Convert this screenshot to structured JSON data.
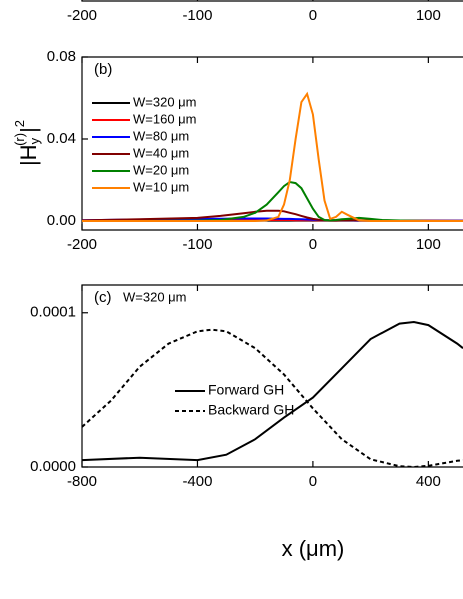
{
  "chart_data": [
    {
      "type": "line",
      "xlim": [
        -200,
        130
      ],
      "xticks": [
        -200,
        -100,
        0,
        100
      ]
    },
    {
      "type": "line",
      "panel_label": "(b)",
      "ylabel_parts": [
        "|H",
        "y",
        "(r)",
        "|",
        "2"
      ],
      "xlim": [
        -200,
        130
      ],
      "xticks": [
        -200,
        -100,
        0,
        100
      ],
      "ylim": [
        -0.0044,
        0.08
      ],
      "yticks": [
        {
          "value": 0,
          "label": "0.00"
        },
        0.04,
        0.08
      ],
      "x": [
        -200,
        -150,
        -100,
        -80,
        -60,
        -50,
        -40,
        -30,
        -25,
        -20,
        -15,
        -10,
        -5,
        0,
        5,
        10,
        15,
        20,
        25,
        30,
        40,
        50,
        60,
        80,
        100,
        130
      ],
      "series": [
        {
          "name": "W=320 μm",
          "color": "#000000",
          "values": [
            0.0001,
            0.0001,
            0.0002,
            0.0002,
            0.0002,
            0.0002,
            0.0002,
            0.0002,
            0.0002,
            0.0002,
            0.0002,
            0.0002,
            0.0002,
            0.0002,
            0.0002,
            0.0002,
            0.0002,
            0.0002,
            0.0002,
            0.0002,
            0.0002,
            0.0002,
            0.0002,
            0.0001,
            0.0001,
            0.0001
          ]
        },
        {
          "name": "W=160 μm",
          "color": "#ff0000",
          "values": [
            0.0002,
            0.0003,
            0.0004,
            0.0004,
            0.0005,
            0.0005,
            0.0005,
            0.0005,
            0.0005,
            0.0005,
            0.0004,
            0.0004,
            0.0004,
            0.0004,
            0.0003,
            0.0003,
            0.0003,
            0.0003,
            0.0003,
            0.0003,
            0.0002,
            0.0002,
            0.0002,
            0.0002,
            0.0001,
            0.0001
          ]
        },
        {
          "name": "W=80 μm",
          "color": "#0000ff",
          "values": [
            0.0004,
            0.0007,
            0.001,
            0.0011,
            0.0012,
            0.0012,
            0.0012,
            0.0011,
            0.001,
            0.001,
            0.0009,
            0.0008,
            0.0007,
            0.0006,
            0.0005,
            0.0004,
            0.0004,
            0.0003,
            0.0003,
            0.0003,
            0.0002,
            0.0002,
            0.0002,
            0.0001,
            0.0001,
            0.0001
          ]
        },
        {
          "name": "W=40 μm",
          "color": "#800000",
          "values": [
            0.0003,
            0.0008,
            0.0015,
            0.0025,
            0.0038,
            0.0045,
            0.005,
            0.005,
            0.0047,
            0.004,
            0.0033,
            0.0025,
            0.0017,
            0.001,
            0.0006,
            0.0003,
            0.0002,
            0.0002,
            0.0003,
            0.0003,
            0.0004,
            0.0004,
            0.0003,
            0.0002,
            0.0001,
            0
          ]
        },
        {
          "name": "W=20 μm",
          "color": "#008000",
          "values": [
            0,
            0,
            0.0002,
            0.0005,
            0.002,
            0.004,
            0.008,
            0.014,
            0.017,
            0.019,
            0.0185,
            0.016,
            0.011,
            0.006,
            0.002,
            0.0005,
            0.0003,
            0.0005,
            0.0008,
            0.001,
            0.0015,
            0.001,
            0.0005,
            0.0002,
            0,
            0
          ]
        },
        {
          "name": "W=10 μm",
          "color": "#ff8000",
          "values": [
            0,
            0,
            0,
            0,
            0,
            0,
            0.0003,
            0.002,
            0.008,
            0.02,
            0.04,
            0.058,
            0.062,
            0.052,
            0.03,
            0.01,
            0.001,
            0.002,
            0.0045,
            0.003,
            0.0003,
            0,
            0,
            0,
            0,
            0
          ]
        }
      ]
    },
    {
      "type": "line",
      "panel_label": "(c)",
      "annotation": "W=320 μm",
      "xlabel": "x (μm)",
      "xlim": [
        -800,
        520
      ],
      "xticks": [
        -800,
        -400,
        0,
        400
      ],
      "ylim": [
        0,
        0.000118
      ],
      "yticks": [
        {
          "value": 0,
          "label": "0.0000"
        },
        0.0001
      ],
      "series": [
        {
          "name": "Forward GH",
          "color": "#000000",
          "dash": false,
          "x": [
            -800,
            -600,
            -400,
            -300,
            -200,
            -100,
            0,
            100,
            200,
            300,
            350,
            400,
            500,
            520
          ],
          "values": [
            4.5e-06,
            6e-06,
            4.5e-06,
            8e-06,
            1.8e-05,
            3.2e-05,
            4.5e-05,
            6.4e-05,
            8.3e-05,
            9.3e-05,
            9.4e-05,
            9.2e-05,
            8e-05,
            7.7e-05
          ]
        },
        {
          "name": "Backward GH",
          "color": "#000000",
          "dash": true,
          "x": [
            -800,
            -700,
            -600,
            -500,
            -400,
            -350,
            -300,
            -200,
            -100,
            0,
            100,
            200,
            300,
            350,
            400,
            500,
            520
          ],
          "values": [
            2.6e-05,
            4.3e-05,
            6.5e-05,
            8e-05,
            8.8e-05,
            8.9e-05,
            8.8e-05,
            7.7e-05,
            6e-05,
            3.8e-05,
            1.8e-05,
            5e-06,
            5e-07,
            0,
            8e-07,
            4e-06,
            4.5e-06
          ]
        }
      ]
    }
  ]
}
